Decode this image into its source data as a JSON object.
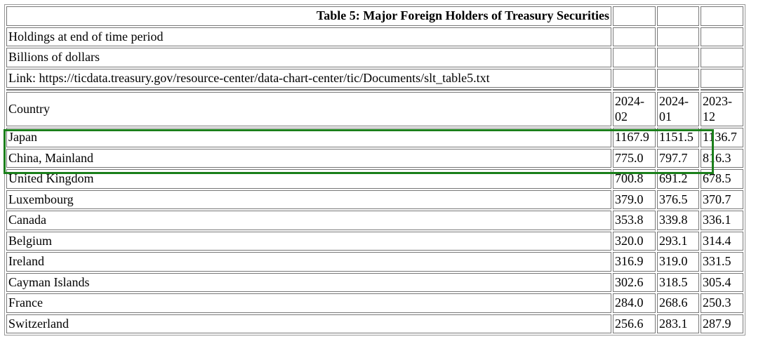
{
  "table": {
    "title": "Table 5: Major Foreign Holders of Treasury Securities",
    "notes": [
      "Holdings at end of time period",
      "Billions of dollars",
      "Link: https://ticdata.treasury.gov/resource-center/data-chart-center/tic/Documents/slt_table5.txt"
    ],
    "headers": [
      "Country",
      "2024-02",
      "2024-01",
      "2023-12"
    ],
    "rows": [
      {
        "country": "Japan",
        "v": [
          "1167.9",
          "1151.5",
          "1136.7"
        ]
      },
      {
        "country": "China, Mainland",
        "v": [
          "775.0",
          "797.7",
          "816.3"
        ]
      },
      {
        "country": "United Kingdom",
        "v": [
          "700.8",
          "691.2",
          "678.5"
        ]
      },
      {
        "country": "Luxembourg",
        "v": [
          "379.0",
          "376.5",
          "370.7"
        ]
      },
      {
        "country": "Canada",
        "v": [
          "353.8",
          "339.8",
          "336.1"
        ]
      },
      {
        "country": "Belgium",
        "v": [
          "320.0",
          "293.1",
          "314.4"
        ]
      },
      {
        "country": "Ireland",
        "v": [
          "316.9",
          "319.0",
          "331.5"
        ]
      },
      {
        "country": "Cayman Islands",
        "v": [
          "302.6",
          "318.5",
          "305.4"
        ]
      },
      {
        "country": "France",
        "v": [
          "284.0",
          "268.6",
          "250.3"
        ]
      },
      {
        "country": "Switzerland",
        "v": [
          "256.6",
          "283.1",
          "287.9"
        ]
      }
    ]
  },
  "highlight_color": "#1a7f1a"
}
